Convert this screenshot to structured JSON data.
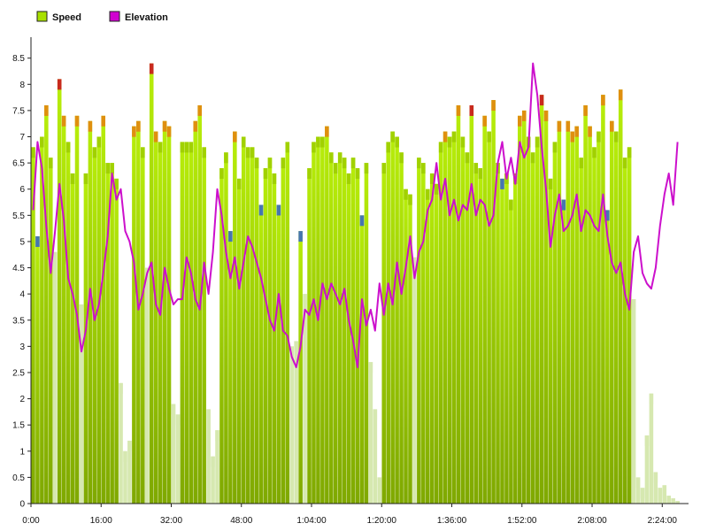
{
  "chart_data": {
    "type": "bar",
    "legend": [
      {
        "label": "Speed",
        "color": "#a8e000",
        "marker": "square"
      },
      {
        "label": "Elevation",
        "color": "#d000d0",
        "marker": "square"
      }
    ],
    "x_ticks": [
      "0:00",
      "16:00",
      "32:00",
      "48:00",
      "1:04:00",
      "1:20:00",
      "1:36:00",
      "1:52:00",
      "2:08:00",
      "2:24:00"
    ],
    "x_tick_minutes": [
      0,
      16,
      32,
      48,
      64,
      80,
      96,
      112,
      128,
      144
    ],
    "y_ticks": [
      "0",
      "0.5",
      "1",
      "1.5",
      "2",
      "2.5",
      "3",
      "3.5",
      "4",
      "4.5",
      "5",
      "5.5",
      "6",
      "6.5",
      "7",
      "7.5",
      "8",
      "8.5"
    ],
    "ylim": [
      0,
      8.9
    ],
    "xlim_minutes": [
      0,
      150
    ],
    "colors": {
      "bar_top": "#b8ee0a",
      "bar_bottom": "#7fa800",
      "cap_low": "#9fd000",
      "cap_mid": "#e08a10",
      "cap_high": "#c82020",
      "cap_dip": "#3f70b8",
      "cap_pale": "#d6e8b0",
      "elevation_line": "#cc10cc"
    },
    "speed_series": {
      "name": "Speed",
      "x_minutes": [
        0,
        1,
        2,
        3,
        4,
        5,
        6,
        7,
        8,
        9,
        10,
        11,
        12,
        13,
        14,
        15,
        16,
        17,
        18,
        19,
        20,
        21,
        22,
        23,
        24,
        25,
        26,
        27,
        28,
        29,
        30,
        31,
        32,
        33,
        34,
        35,
        36,
        37,
        38,
        39,
        40,
        41,
        42,
        43,
        44,
        45,
        46,
        47,
        48,
        49,
        50,
        51,
        52,
        53,
        54,
        55,
        56,
        57,
        58,
        59,
        60,
        61,
        62,
        63,
        64,
        65,
        66,
        67,
        68,
        69,
        70,
        71,
        72,
        73,
        74,
        75,
        76,
        77,
        78,
        79,
        80,
        81,
        82,
        83,
        84,
        85,
        86,
        87,
        88,
        89,
        90,
        91,
        92,
        93,
        94,
        95,
        96,
        97,
        98,
        99,
        100,
        101,
        102,
        103,
        104,
        105,
        106,
        107,
        108,
        109,
        110,
        111,
        112,
        113,
        114,
        115,
        116,
        117,
        118,
        119,
        120,
        121,
        122,
        123,
        124,
        125,
        126,
        127,
        128,
        129,
        130,
        131,
        132,
        133,
        134,
        135,
        136,
        137,
        138,
        139,
        140,
        141,
        142,
        143,
        144,
        145,
        146,
        147
      ],
      "values": [
        6.8,
        5.1,
        7.0,
        7.6,
        6.6,
        4.8,
        8.1,
        7.4,
        6.9,
        6.3,
        7.4,
        3.8,
        6.3,
        7.3,
        6.8,
        7.0,
        7.4,
        6.5,
        6.5,
        6.2,
        2.3,
        1.0,
        1.2,
        7.2,
        7.3,
        6.8,
        4.5,
        8.4,
        7.1,
        6.9,
        7.3,
        7.2,
        1.9,
        1.7,
        6.9,
        6.9,
        6.9,
        7.3,
        7.6,
        6.8,
        1.8,
        0.9,
        1.4,
        6.4,
        6.7,
        5.2,
        7.1,
        6.2,
        7.0,
        6.8,
        6.8,
        6.6,
        5.7,
        6.4,
        6.6,
        6.3,
        5.7,
        6.6,
        6.9,
        3.0,
        3.1,
        5.2,
        4.0,
        6.4,
        6.9,
        7.0,
        7.0,
        7.2,
        6.7,
        6.5,
        6.7,
        6.6,
        6.3,
        6.6,
        6.4,
        5.5,
        6.5,
        2.7,
        1.8,
        0.5,
        6.5,
        6.9,
        7.1,
        7.0,
        6.7,
        6.0,
        5.9,
        4.7,
        6.6,
        6.5,
        6.0,
        6.3,
        6.1,
        6.9,
        7.1,
        7.0,
        7.1,
        7.6,
        7.0,
        6.7,
        7.6,
        6.5,
        6.4,
        7.4,
        7.1,
        7.7,
        6.5,
        6.2,
        6.3,
        5.8,
        6.3,
        7.4,
        7.5,
        7.0,
        6.7,
        7.0,
        7.8,
        7.5,
        6.2,
        6.9,
        7.3,
        5.8,
        7.3,
        7.1,
        7.2,
        6.6,
        7.6,
        7.2,
        6.8,
        7.1,
        7.8,
        5.6,
        7.3,
        7.1,
        7.9,
        6.6,
        6.8,
        3.9,
        0.5,
        0.3,
        1.3,
        2.1,
        0.6,
        0.3,
        0.35,
        0.15,
        0.1,
        0.05
      ],
      "cap_types": [
        "low",
        "dip",
        "low",
        "mid",
        "low",
        "pale",
        "high",
        "mid",
        "low",
        "low",
        "mid",
        "pale",
        "low",
        "mid",
        "low",
        "low",
        "mid",
        "low",
        "low",
        "low",
        "pale",
        "pale",
        "pale",
        "mid",
        "mid",
        "low",
        "pale",
        "high",
        "mid",
        "low",
        "mid",
        "mid",
        "pale",
        "pale",
        "low",
        "low",
        "low",
        "mid",
        "mid",
        "low",
        "pale",
        "pale",
        "pale",
        "low",
        "low",
        "dip",
        "mid",
        "low",
        "low",
        "low",
        "low",
        "low",
        "dip",
        "low",
        "low",
        "low",
        "dip",
        "low",
        "low",
        "pale",
        "pale",
        "dip",
        "pale",
        "low",
        "low",
        "low",
        "low",
        "mid",
        "low",
        "low",
        "low",
        "low",
        "low",
        "low",
        "low",
        "dip",
        "low",
        "pale",
        "pale",
        "pale",
        "low",
        "low",
        "low",
        "low",
        "low",
        "low",
        "low",
        "pale",
        "low",
        "low",
        "low",
        "low",
        "low",
        "low",
        "mid",
        "low",
        "low",
        "mid",
        "low",
        "low",
        "high",
        "low",
        "low",
        "mid",
        "low",
        "mid",
        "low",
        "dip",
        "low",
        "low",
        "low",
        "mid",
        "mid",
        "low",
        "low",
        "low",
        "high",
        "mid",
        "low",
        "low",
        "mid",
        "dip",
        "mid",
        "mid",
        "mid",
        "low",
        "mid",
        "mid",
        "low",
        "low",
        "mid",
        "dip",
        "mid",
        "low",
        "mid",
        "low",
        "low",
        "pale",
        "pale",
        "pale",
        "pale",
        "pale",
        "pale",
        "pale",
        "pale",
        "pale",
        "pale",
        "pale"
      ]
    },
    "elevation_series": {
      "name": "Elevation",
      "x_minutes": [
        0,
        1,
        2,
        3,
        4,
        5,
        6,
        7,
        8,
        9,
        10,
        11,
        12,
        13,
        14,
        15,
        16,
        17,
        18,
        19,
        20,
        21,
        22,
        23,
        24,
        25,
        26,
        27,
        28,
        29,
        30,
        31,
        32,
        33,
        34,
        35,
        36,
        37,
        38,
        39,
        40,
        41,
        42,
        43,
        44,
        45,
        46,
        47,
        48,
        49,
        50,
        51,
        52,
        53,
        54,
        55,
        56,
        57,
        58,
        59,
        60,
        61,
        62,
        63,
        64,
        65,
        66,
        67,
        68,
        69,
        70,
        71,
        72,
        73,
        74,
        75,
        76,
        77,
        78,
        79,
        80,
        81,
        82,
        83,
        84,
        85,
        86,
        87,
        88,
        89,
        90,
        91,
        92,
        93,
        94,
        95,
        96,
        97,
        98,
        99,
        100,
        101,
        102,
        103,
        104,
        105,
        106,
        107,
        108,
        109,
        110,
        111,
        112,
        113,
        114,
        115,
        116,
        117,
        118,
        119,
        120,
        121,
        122,
        123,
        124,
        125,
        126,
        127,
        128,
        129,
        130,
        131,
        132,
        133,
        134,
        135,
        136,
        137,
        138,
        139,
        140,
        141,
        142,
        143,
        144,
        145,
        146,
        147
      ],
      "values": [
        5.6,
        6.9,
        6.4,
        5.3,
        4.4,
        5.2,
        6.1,
        5.4,
        4.3,
        4.0,
        3.6,
        2.9,
        3.3,
        4.1,
        3.5,
        3.8,
        4.4,
        5.1,
        6.3,
        5.8,
        6.0,
        5.2,
        5.0,
        4.6,
        3.7,
        4.0,
        4.4,
        4.6,
        3.8,
        3.6,
        4.5,
        4.1,
        3.8,
        3.9,
        3.9,
        4.7,
        4.4,
        3.9,
        3.7,
        4.6,
        4.0,
        4.8,
        6.0,
        5.5,
        4.8,
        4.3,
        4.7,
        4.1,
        4.6,
        5.1,
        4.9,
        4.6,
        4.3,
        3.9,
        3.5,
        3.3,
        4.0,
        3.3,
        3.2,
        2.8,
        2.6,
        3.0,
        3.7,
        3.6,
        3.9,
        3.5,
        4.2,
        3.9,
        4.2,
        4.0,
        3.8,
        4.1,
        3.5,
        3.1,
        2.6,
        3.9,
        3.4,
        3.7,
        3.3,
        4.2,
        3.6,
        4.2,
        3.8,
        4.6,
        4.0,
        4.5,
        5.1,
        4.3,
        4.8,
        5.0,
        5.6,
        5.8,
        6.5,
        5.8,
        6.2,
        5.5,
        5.8,
        5.4,
        5.7,
        5.6,
        6.1,
        5.5,
        5.8,
        5.7,
        5.3,
        5.5,
        6.5,
        6.9,
        6.2,
        6.6,
        6.1,
        6.9,
        6.6,
        6.8,
        8.4,
        7.8,
        6.8,
        6.0,
        4.9,
        5.5,
        5.9,
        5.2,
        5.3,
        5.5,
        5.9,
        5.2,
        5.6,
        5.5,
        5.3,
        5.2,
        5.9,
        5.1,
        4.6,
        4.4,
        4.6,
        4.0,
        3.7,
        4.8,
        5.1,
        4.4,
        4.2,
        4.1,
        4.5,
        5.3,
        5.9,
        6.3,
        5.7,
        6.9
      ]
    }
  }
}
